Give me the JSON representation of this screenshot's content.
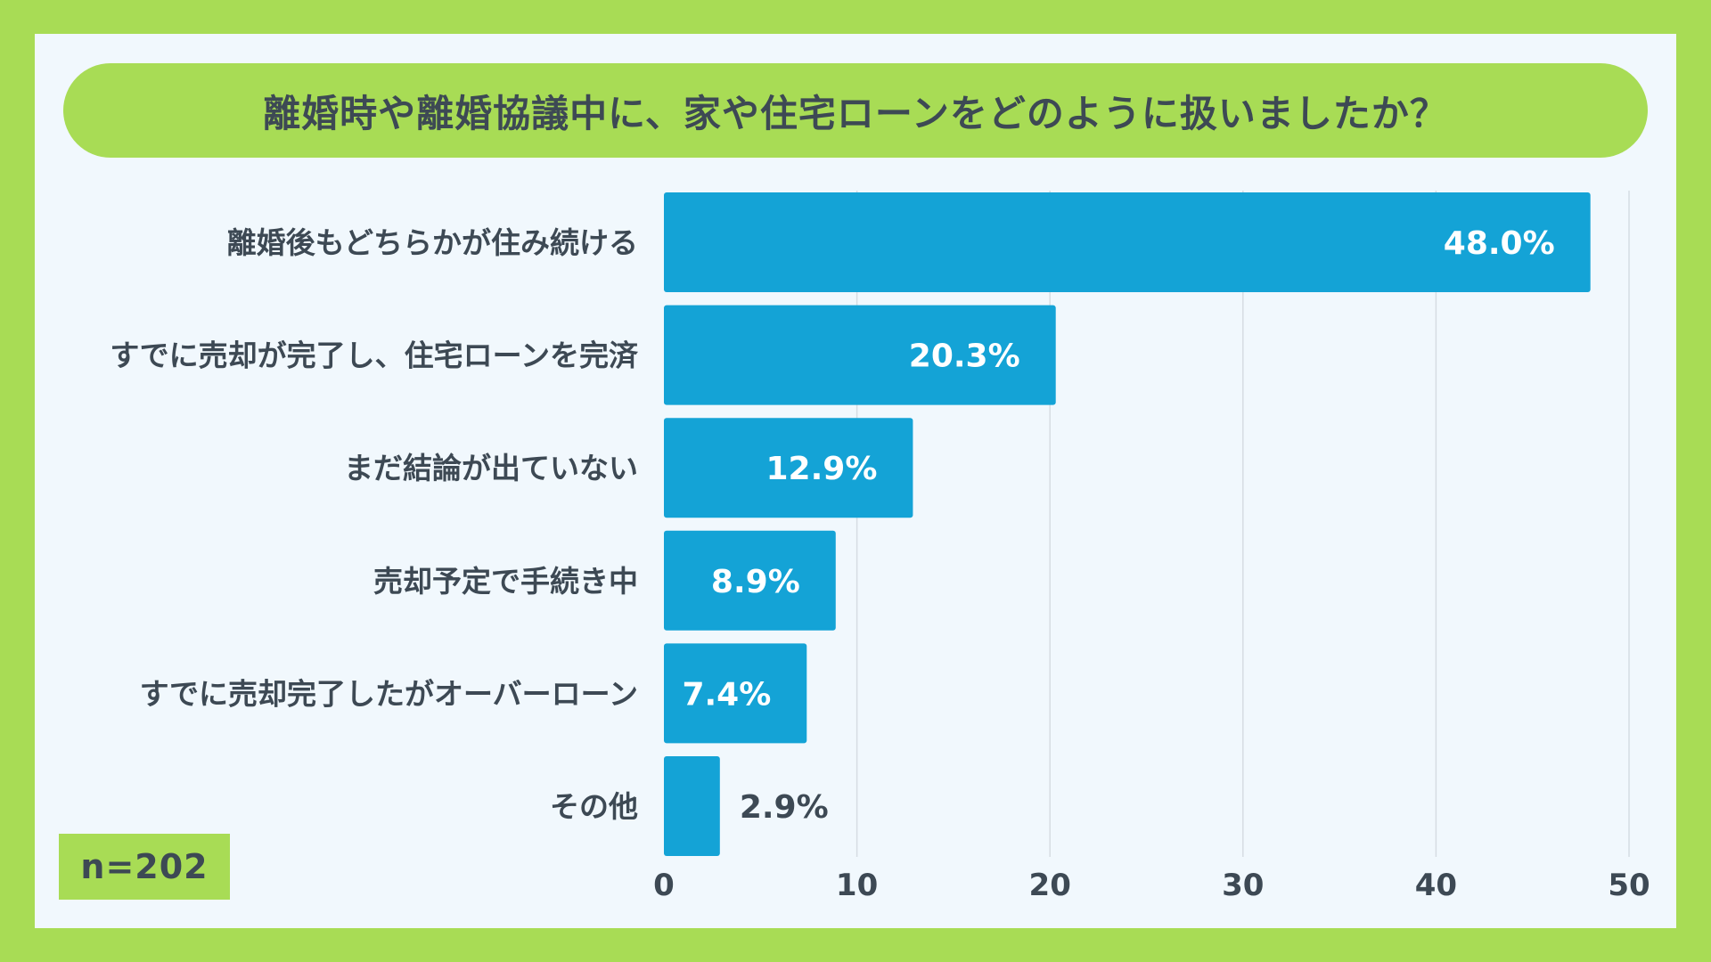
{
  "title": "離婚時や離婚協議中に、家や住宅ローンをどのように扱いましたか？",
  "sample_size": "n=202",
  "colors": {
    "bar": "#14a3d6",
    "background": "#a8dc55",
    "panel": "#f1f8fd",
    "text": "#3d4954"
  },
  "chart_data": {
    "type": "bar",
    "orientation": "horizontal",
    "categories": [
      "離婚後もどちらかが住み続ける",
      "すでに売却が完了し、住宅ローンを完済",
      "まだ結論が出ていない",
      "売却予定で手続き中",
      "すでに売却完了したがオーバーローン",
      "その他"
    ],
    "values": [
      48.0,
      20.3,
      12.9,
      8.9,
      7.4,
      2.9
    ],
    "value_labels": [
      "48.0%",
      "20.3%",
      "12.9%",
      "8.9%",
      "7.4%",
      "2.9%"
    ],
    "xlim": [
      0,
      50
    ],
    "xticks": [
      0,
      10,
      20,
      30,
      40,
      50
    ],
    "grid": true
  }
}
